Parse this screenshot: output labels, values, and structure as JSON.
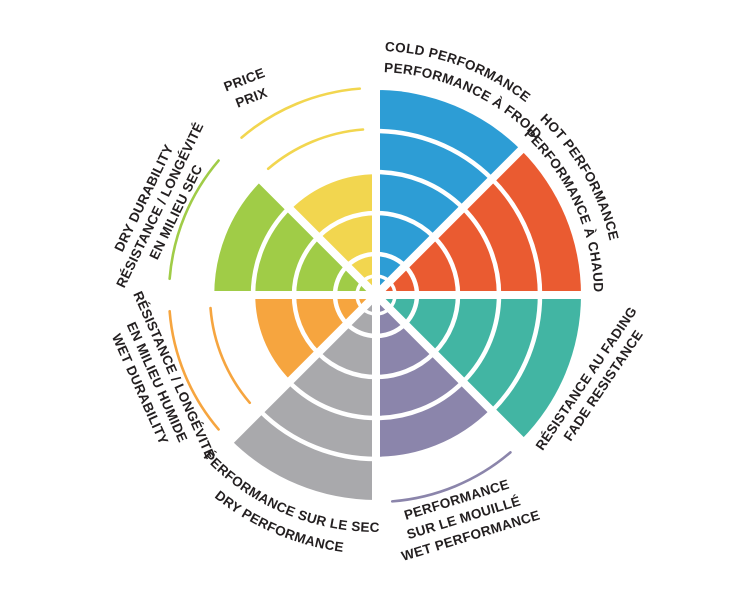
{
  "chart_data": {
    "type": "pie",
    "variant": "radial-rating-wheel",
    "scale_max": 5,
    "rings": 5,
    "background_color": "#FFFFFF",
    "text_color": "#231F20",
    "sectors": [
      {
        "id": "cold-performance",
        "labels": [
          "COLD PERFORMANCE",
          "PERFORMANCE À FROID"
        ],
        "color": "#2D9DD5",
        "value": 5
      },
      {
        "id": "hot-performance",
        "labels": [
          "HOT PERFORMANCE",
          "PERFORMANCE À CHAUD"
        ],
        "color": "#EA5B31",
        "value": 5
      },
      {
        "id": "fade-resistance",
        "labels": [
          "RÉSISTANCE AU FADING",
          "FADE RESISTANCE"
        ],
        "color": "#42B5A3",
        "value": 5
      },
      {
        "id": "wet-performance",
        "labels": [
          "PERFORMANCE",
          "SUR LE MOUILLÉ",
          "WET PERFORMANCE"
        ],
        "color": "#8B85AB",
        "value": 4
      },
      {
        "id": "dry-performance",
        "labels": [
          "PERFORMANCE SUR LE SEC",
          "DRY PERFORMANCE"
        ],
        "color": "#A9A9AC",
        "value": 5
      },
      {
        "id": "wet-durability",
        "labels": [
          "RÉSISTANCE / LONGÉVITÉ",
          "EN MILIEU HUMIDE",
          "WET DURABILITY"
        ],
        "color": "#F6A53F",
        "value": 3
      },
      {
        "id": "dry-durability",
        "labels": [
          "DRY DURABILITY",
          "RÉSISTANCE / LONGÉVITÉ",
          "EN MILIEU SEC"
        ],
        "color": "#A0CC47",
        "value": 4
      },
      {
        "id": "price",
        "labels": [
          "PRICE",
          "PRIX"
        ],
        "color": "#F2D64F",
        "value": 3
      }
    ]
  }
}
